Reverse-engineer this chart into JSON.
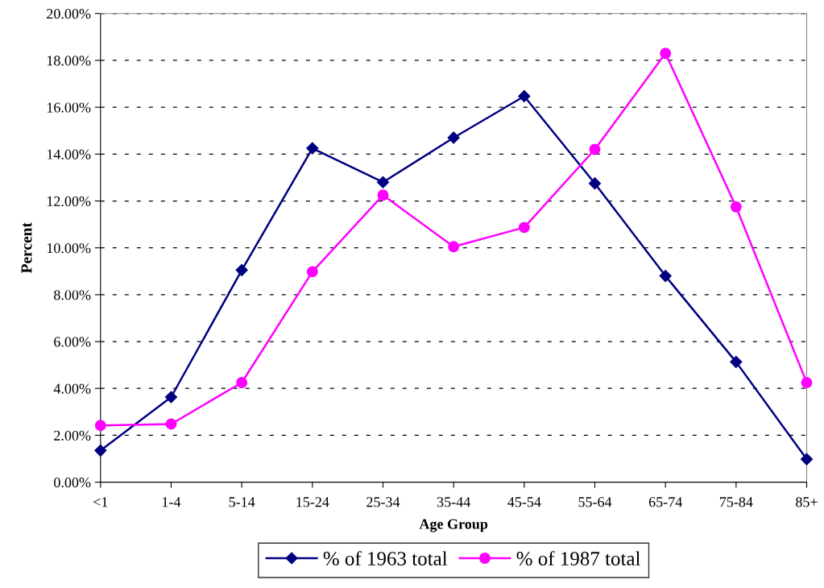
{
  "chart_data": {
    "type": "line",
    "xlabel": "Age Group",
    "ylabel": "Percent",
    "categories": [
      "<1",
      "1-4",
      "5-14",
      "15-24",
      "25-34",
      "35-44",
      "45-54",
      "55-64",
      "65-74",
      "75-84",
      "85+"
    ],
    "series": [
      {
        "name": "% of 1963 total",
        "color": "#000080",
        "marker": "diamond",
        "values": [
          1.35,
          3.63,
          9.05,
          14.25,
          12.8,
          14.7,
          16.47,
          12.75,
          8.8,
          5.13,
          0.98
        ]
      },
      {
        "name": "% of 1987 total",
        "color": "#ff00ff",
        "marker": "circle",
        "values": [
          2.42,
          2.48,
          4.25,
          8.98,
          12.25,
          10.05,
          10.87,
          14.2,
          18.3,
          11.75,
          4.25
        ]
      }
    ],
    "ylim": [
      0,
      20
    ],
    "yticks": [
      {
        "value": 0,
        "label": "0.00%"
      },
      {
        "value": 2,
        "label": "2.00%"
      },
      {
        "value": 4,
        "label": "4.00%"
      },
      {
        "value": 6,
        "label": "6.00%"
      },
      {
        "value": 8,
        "label": "8.00%"
      },
      {
        "value": 10,
        "label": "10.00%"
      },
      {
        "value": 12,
        "label": "12.00%"
      },
      {
        "value": 14,
        "label": "14.00%"
      },
      {
        "value": 16,
        "label": "16.00%"
      },
      {
        "value": 18,
        "label": "18.00%"
      },
      {
        "value": 20,
        "label": "20.00%"
      }
    ],
    "grid": "y",
    "legend": "bottom",
    "line_style": "solid"
  }
}
